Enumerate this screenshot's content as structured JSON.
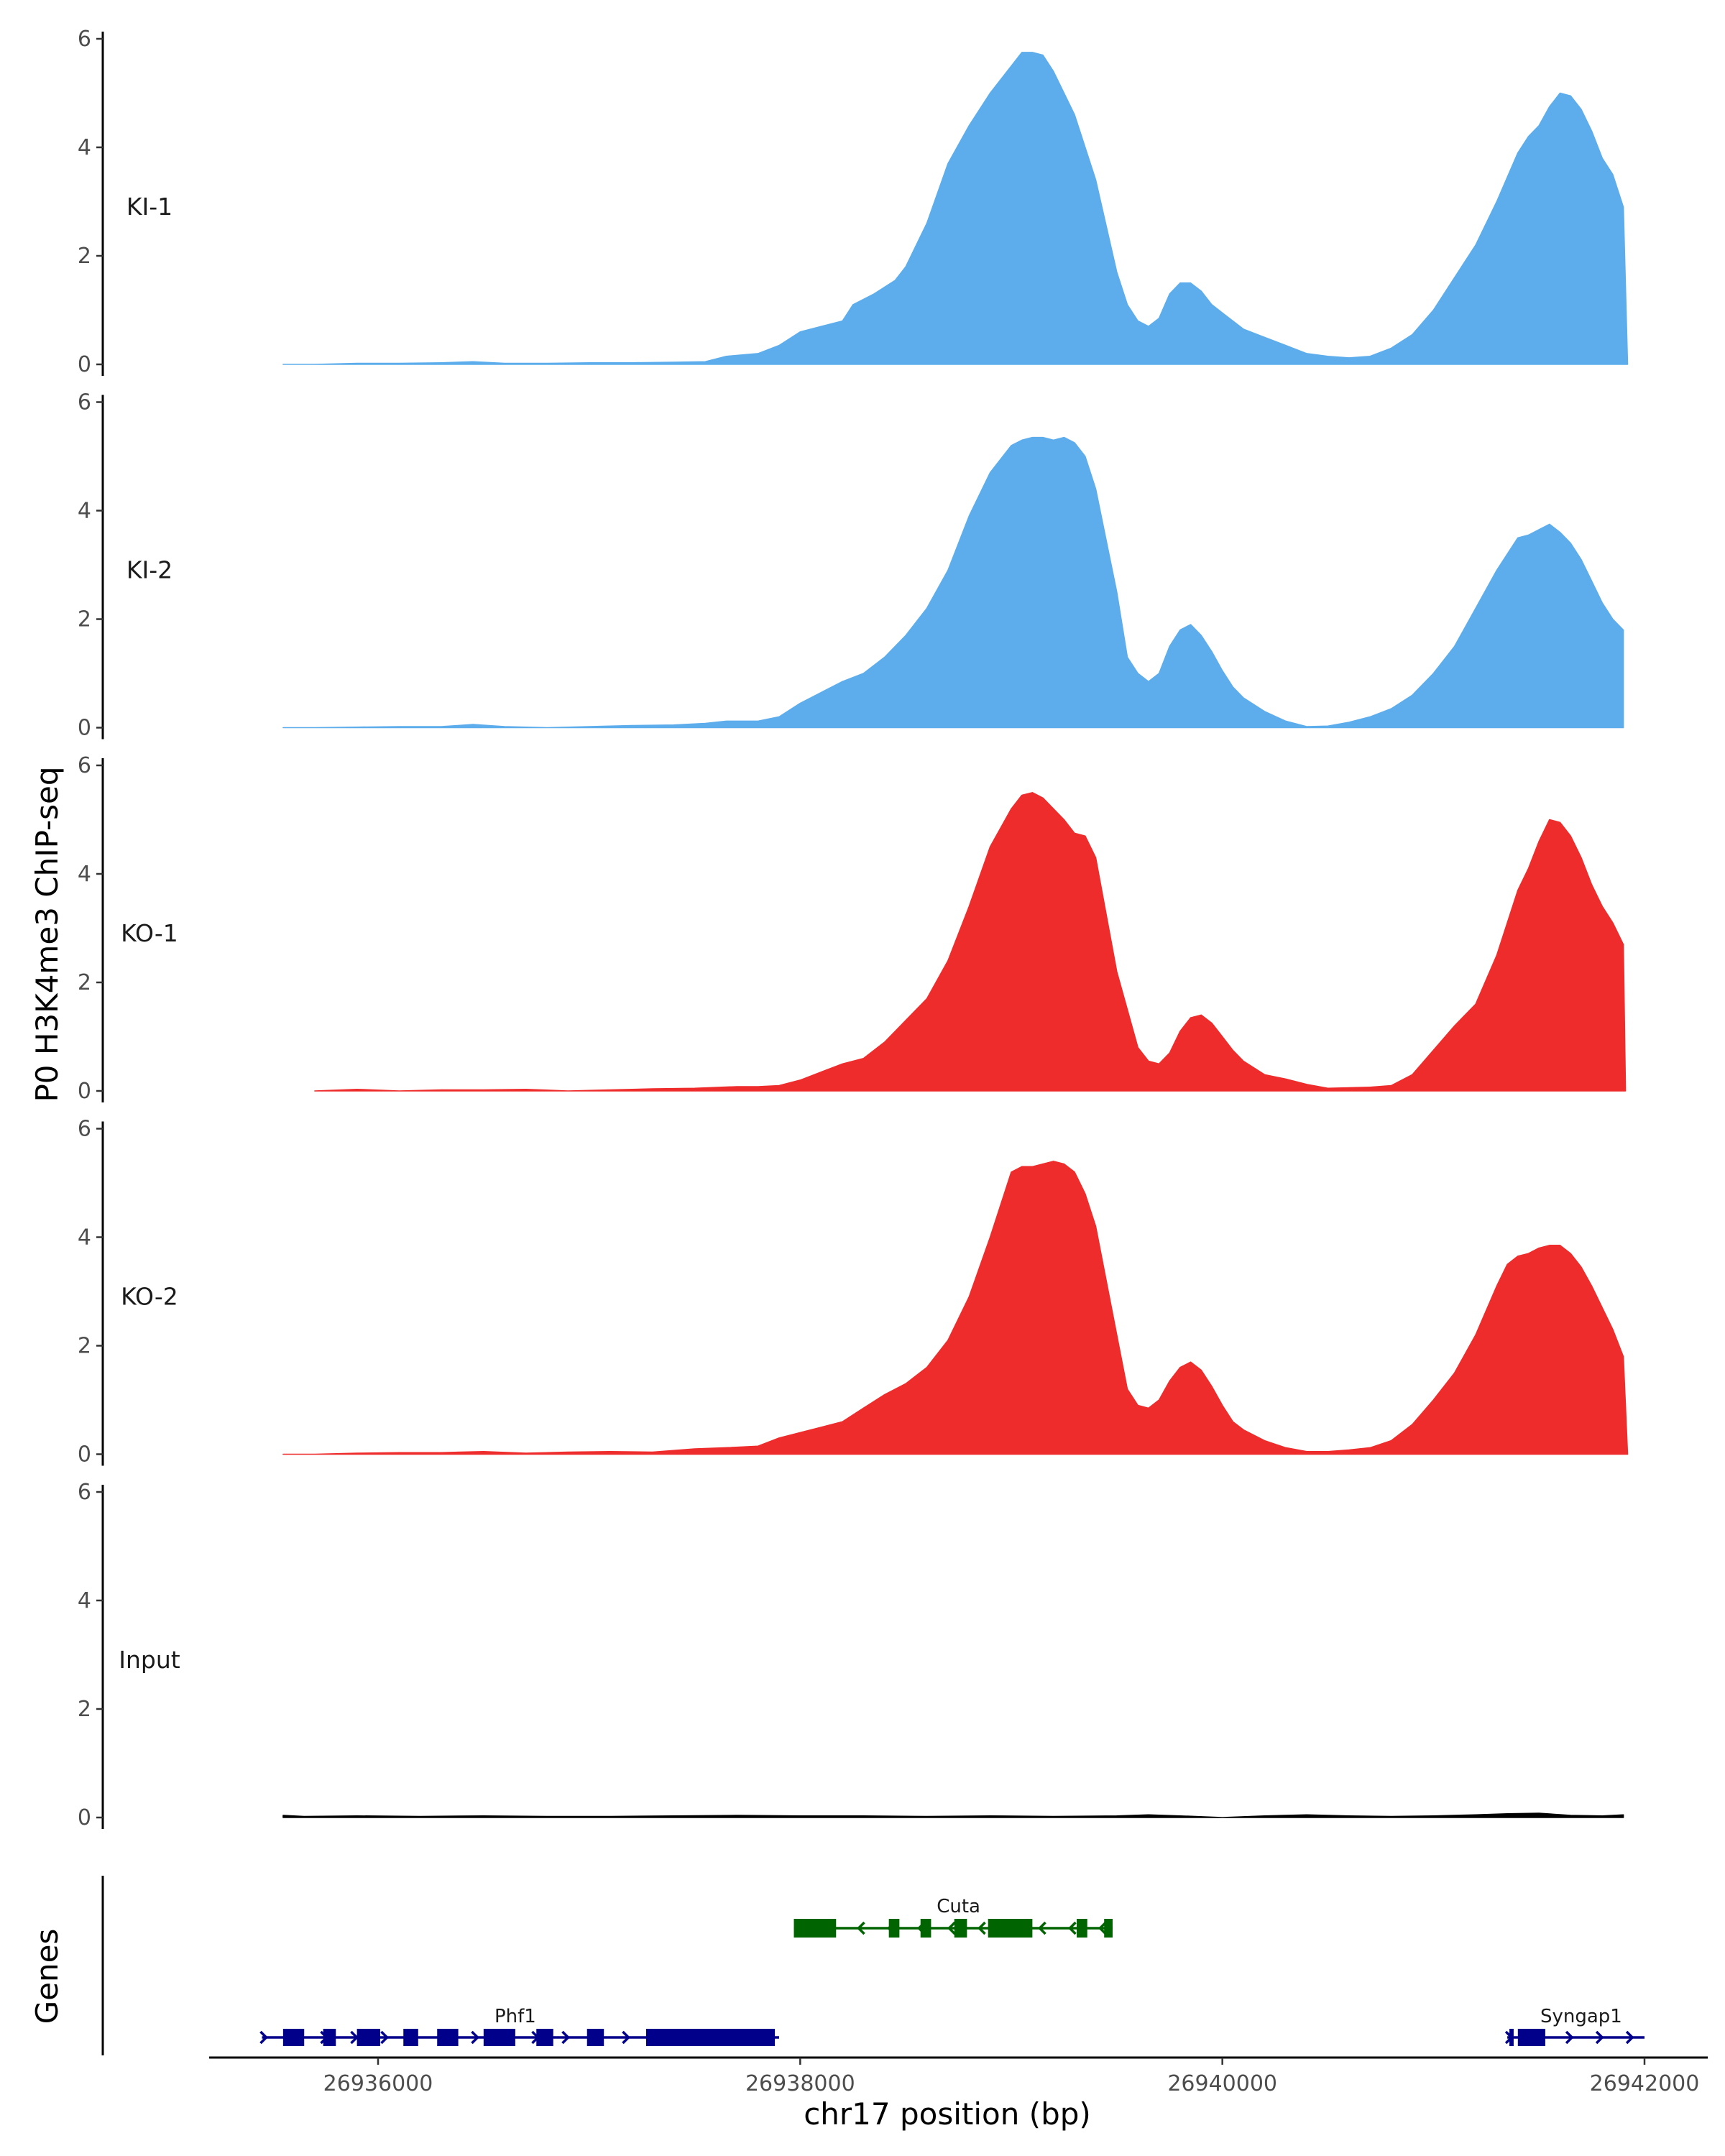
{
  "chart_data": {
    "type": "area",
    "ylabel": "P0 H3K4me3 ChIP-seq",
    "xlabel": "chr17 position (bp)",
    "genes_label": "Genes",
    "ylim": [
      0,
      6
    ],
    "yticks": [
      "0",
      "2",
      "4",
      "6"
    ],
    "xlim": [
      26935200,
      26942300
    ],
    "xticks": [
      {
        "value": 26936000,
        "label": "26936000"
      },
      {
        "value": 26938000,
        "label": "26938000"
      },
      {
        "value": 26940000,
        "label": "26940000"
      },
      {
        "value": 26942000,
        "label": "26942000"
      }
    ],
    "tracks": [
      {
        "name": "KI-1",
        "color": "#5DADEC",
        "x": [
          26935550,
          26935700,
          26935900,
          26936100,
          26936300,
          26936450,
          26936600,
          26936800,
          26937000,
          26937200,
          26937400,
          26937550,
          26937650,
          26937800,
          26937900,
          26938000,
          26938100,
          26938200,
          26938250,
          26938350,
          26938450,
          26938500,
          26938600,
          26938700,
          26938800,
          26938900,
          26939000,
          26939050,
          26939100,
          26939150,
          26939200,
          26939250,
          26939300,
          26939400,
          26939500,
          26939550,
          26939600,
          26939650,
          26939700,
          26939750,
          26939800,
          26939850,
          26939900,
          26939950,
          26940000,
          26940050,
          26940100,
          26940200,
          26940300,
          26940400,
          26940500,
          26940600,
          26940700,
          26940800,
          26940900,
          26941000,
          26941100,
          26941200,
          26941300,
          26941400,
          26941450,
          26941500,
          26941550,
          26941600,
          26941650,
          26941700,
          26941750,
          26941800,
          26941850,
          26941900,
          26941920
        ],
        "values": [
          0.0,
          0.0,
          0.02,
          0.02,
          0.03,
          0.05,
          0.02,
          0.02,
          0.03,
          0.03,
          0.04,
          0.05,
          0.15,
          0.2,
          0.35,
          0.6,
          0.7,
          0.8,
          1.1,
          1.3,
          1.55,
          1.8,
          2.6,
          3.7,
          4.4,
          5.0,
          5.5,
          5.75,
          5.75,
          5.7,
          5.4,
          5.0,
          4.6,
          3.4,
          1.7,
          1.1,
          0.8,
          0.7,
          0.85,
          1.3,
          1.5,
          1.5,
          1.35,
          1.1,
          0.95,
          0.8,
          0.65,
          0.5,
          0.35,
          0.2,
          0.15,
          0.12,
          0.15,
          0.3,
          0.55,
          1.0,
          1.6,
          2.2,
          3.0,
          3.9,
          4.2,
          4.4,
          4.75,
          5.0,
          4.95,
          4.7,
          4.3,
          3.8,
          3.5,
          2.9,
          0.0
        ]
      },
      {
        "name": "KI-2",
        "color": "#5DADEC",
        "x": [
          26935550,
          26935700,
          26935900,
          26936100,
          26936300,
          26936450,
          26936600,
          26936800,
          26937000,
          26937200,
          26937400,
          26937550,
          26937650,
          26937800,
          26937900,
          26938000,
          26938100,
          26938200,
          26938300,
          26938400,
          26938500,
          26938600,
          26938700,
          26938800,
          26938900,
          26939000,
          26939050,
          26939100,
          26939150,
          26939200,
          26939250,
          26939300,
          26939350,
          26939400,
          26939500,
          26939550,
          26939600,
          26939650,
          26939700,
          26939750,
          26939800,
          26939850,
          26939900,
          26939950,
          26940000,
          26940050,
          26940100,
          26940200,
          26940300,
          26940400,
          26940500,
          26940600,
          26940700,
          26940800,
          26940900,
          26941000,
          26941100,
          26941200,
          26941300,
          26941400,
          26941450,
          26941500,
          26941550,
          26941600,
          26941650,
          26941700,
          26941750,
          26941800,
          26941850,
          26941900
        ],
        "values": [
          0.0,
          0.0,
          0.01,
          0.02,
          0.02,
          0.06,
          0.02,
          0.0,
          0.02,
          0.04,
          0.05,
          0.08,
          0.12,
          0.12,
          0.2,
          0.45,
          0.65,
          0.85,
          1.0,
          1.3,
          1.7,
          2.2,
          2.9,
          3.9,
          4.7,
          5.2,
          5.3,
          5.35,
          5.35,
          5.3,
          5.35,
          5.25,
          5.0,
          4.4,
          2.5,
          1.3,
          1.0,
          0.85,
          1.0,
          1.5,
          1.8,
          1.9,
          1.7,
          1.4,
          1.05,
          0.75,
          0.55,
          0.3,
          0.12,
          0.02,
          0.03,
          0.1,
          0.2,
          0.35,
          0.6,
          1.0,
          1.5,
          2.2,
          2.9,
          3.5,
          3.55,
          3.65,
          3.75,
          3.6,
          3.4,
          3.1,
          2.7,
          2.3,
          2.0,
          1.8
        ]
      },
      {
        "name": "KO-1",
        "color": "#EE2C2C",
        "x": [
          26935700,
          26935900,
          26936100,
          26936300,
          26936500,
          26936700,
          26936900,
          26937100,
          26937300,
          26937500,
          26937700,
          26937800,
          26937900,
          26938000,
          26938100,
          26938200,
          26938300,
          26938400,
          26938500,
          26938600,
          26938700,
          26938800,
          26938900,
          26939000,
          26939050,
          26939100,
          26939150,
          26939200,
          26939250,
          26939300,
          26939350,
          26939400,
          26939500,
          26939600,
          26939650,
          26939700,
          26939750,
          26939800,
          26939850,
          26939900,
          26939950,
          26940000,
          26940050,
          26940100,
          26940200,
          26940300,
          26940400,
          26940500,
          26940600,
          26940700,
          26940800,
          26940900,
          26941000,
          26941100,
          26941200,
          26941300,
          26941400,
          26941450,
          26941500,
          26941550,
          26941600,
          26941650,
          26941700,
          26941750,
          26941800,
          26941850,
          26941900,
          26941910
        ],
        "values": [
          0.0,
          0.03,
          0.0,
          0.02,
          0.02,
          0.03,
          0.0,
          0.02,
          0.04,
          0.05,
          0.08,
          0.08,
          0.1,
          0.2,
          0.35,
          0.5,
          0.6,
          0.9,
          1.3,
          1.7,
          2.4,
          3.4,
          4.5,
          5.2,
          5.45,
          5.5,
          5.4,
          5.2,
          5.0,
          4.75,
          4.7,
          4.3,
          2.2,
          0.8,
          0.55,
          0.5,
          0.7,
          1.1,
          1.35,
          1.4,
          1.25,
          1.0,
          0.75,
          0.55,
          0.3,
          0.22,
          0.12,
          0.05,
          0.06,
          0.07,
          0.1,
          0.3,
          0.75,
          1.2,
          1.6,
          2.5,
          3.7,
          4.1,
          4.6,
          5.0,
          4.95,
          4.7,
          4.3,
          3.8,
          3.4,
          3.1,
          2.7,
          0.0
        ]
      },
      {
        "name": "KO-2",
        "color": "#EE2C2C",
        "x": [
          26935550,
          26935700,
          26935900,
          26936100,
          26936300,
          26936500,
          26936700,
          26936900,
          26937100,
          26937300,
          26937500,
          26937650,
          26937800,
          26937900,
          26938000,
          26938100,
          26938200,
          26938300,
          26938400,
          26938500,
          26938600,
          26938700,
          26938800,
          26938900,
          26939000,
          26939050,
          26939100,
          26939150,
          26939200,
          26939250,
          26939300,
          26939350,
          26939400,
          26939500,
          26939550,
          26939600,
          26939650,
          26939700,
          26939750,
          26939800,
          26939850,
          26939900,
          26939950,
          26940000,
          26940050,
          26940100,
          26940200,
          26940300,
          26940400,
          26940500,
          26940600,
          26940700,
          26940800,
          26940900,
          26941000,
          26941100,
          26941200,
          26941300,
          26941350,
          26941400,
          26941450,
          26941500,
          26941550,
          26941600,
          26941650,
          26941700,
          26941750,
          26941800,
          26941850,
          26941900,
          26941920
        ],
        "values": [
          0.0,
          0.0,
          0.02,
          0.03,
          0.03,
          0.05,
          0.02,
          0.04,
          0.05,
          0.04,
          0.1,
          0.12,
          0.15,
          0.3,
          0.4,
          0.5,
          0.6,
          0.85,
          1.1,
          1.3,
          1.6,
          2.1,
          2.9,
          4.0,
          5.2,
          5.3,
          5.3,
          5.35,
          5.4,
          5.35,
          5.2,
          4.8,
          4.2,
          2.2,
          1.2,
          0.9,
          0.85,
          1.0,
          1.35,
          1.6,
          1.7,
          1.55,
          1.25,
          0.9,
          0.6,
          0.45,
          0.25,
          0.12,
          0.05,
          0.05,
          0.08,
          0.12,
          0.25,
          0.55,
          1.0,
          1.5,
          2.2,
          3.1,
          3.5,
          3.65,
          3.7,
          3.8,
          3.85,
          3.85,
          3.7,
          3.45,
          3.1,
          2.7,
          2.3,
          1.8,
          0.0
        ]
      },
      {
        "name": "Input",
        "color": "#000000",
        "x": [
          26935550,
          26935650,
          26935900,
          26936200,
          26936500,
          26936800,
          26937100,
          26937400,
          26937700,
          26938000,
          26938300,
          26938600,
          26938900,
          26939200,
          26939500,
          26939650,
          26939800,
          26940000,
          26940200,
          26940400,
          26940600,
          26940800,
          26941000,
          26941200,
          26941350,
          26941500,
          26941650,
          26941800,
          26941900
        ],
        "values": [
          0.04,
          0.02,
          0.03,
          0.02,
          0.03,
          0.02,
          0.02,
          0.03,
          0.04,
          0.03,
          0.03,
          0.02,
          0.03,
          0.02,
          0.03,
          0.05,
          0.03,
          0.0,
          0.03,
          0.05,
          0.03,
          0.02,
          0.03,
          0.05,
          0.07,
          0.08,
          0.04,
          0.03,
          0.05
        ]
      }
    ],
    "genes": [
      {
        "name": "Cuta",
        "strand": "-",
        "color": "#006400",
        "row": 1,
        "start": 26937970,
        "end": 26939480,
        "label_pos": 26938750,
        "exons": [
          [
            26937970,
            26938170
          ],
          [
            26938420,
            26938470
          ],
          [
            26938570,
            26938620
          ],
          [
            26938730,
            26938790
          ],
          [
            26938890,
            26939100
          ],
          [
            26939310,
            26939360
          ],
          [
            26939440,
            26939480
          ]
        ]
      },
      {
        "name": "Phf1",
        "strand": "+",
        "color": "#00008B",
        "row": 2,
        "start": 26935450,
        "end": 26937900,
        "label_pos": 26936650,
        "exons": [
          [
            26935550,
            26935650
          ],
          [
            26935740,
            26935800
          ],
          [
            26935900,
            26936010
          ],
          [
            26936120,
            26936190
          ],
          [
            26936280,
            26936380
          ],
          [
            26936500,
            26936650
          ],
          [
            26936750,
            26936830
          ],
          [
            26936990,
            26937070
          ],
          [
            26937270,
            26937880
          ]
        ]
      },
      {
        "name": "Syngap1",
        "strand": "+",
        "color": "#00008B",
        "row": 2,
        "start": 26941350,
        "end": 26942000,
        "label_pos": 26941700,
        "exons": [
          [
            26941360,
            26941380
          ],
          [
            26941400,
            26941530
          ]
        ]
      }
    ]
  }
}
